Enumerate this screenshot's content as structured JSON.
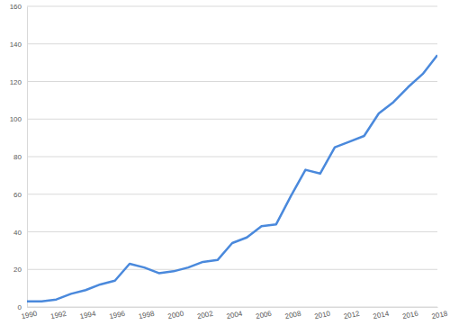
{
  "chart_data": {
    "type": "line",
    "x": [
      1990,
      1991,
      1992,
      1993,
      1994,
      1995,
      1996,
      1997,
      1998,
      1999,
      2000,
      2001,
      2002,
      2003,
      2004,
      2005,
      2006,
      2007,
      2008,
      2009,
      2010,
      2011,
      2012,
      2013,
      2014,
      2015,
      2016,
      2017,
      2018
    ],
    "values": [
      3,
      3,
      4,
      7,
      9,
      12,
      14,
      23,
      21,
      18,
      19,
      21,
      24,
      25,
      34,
      37,
      43,
      44,
      59,
      73,
      71,
      85,
      88,
      91,
      103,
      109,
      117,
      124,
      134
    ],
    "color": "#4a89dc",
    "xlim": [
      1990,
      2018
    ],
    "xticks": [
      1990,
      1992,
      1994,
      1996,
      1998,
      2000,
      2002,
      2004,
      2006,
      2008,
      2010,
      2012,
      2014,
      2016,
      2018
    ],
    "ylim": [
      0,
      160
    ],
    "yticks": [
      0,
      20,
      40,
      60,
      80,
      100,
      120,
      140,
      160
    ],
    "grid": true
  }
}
